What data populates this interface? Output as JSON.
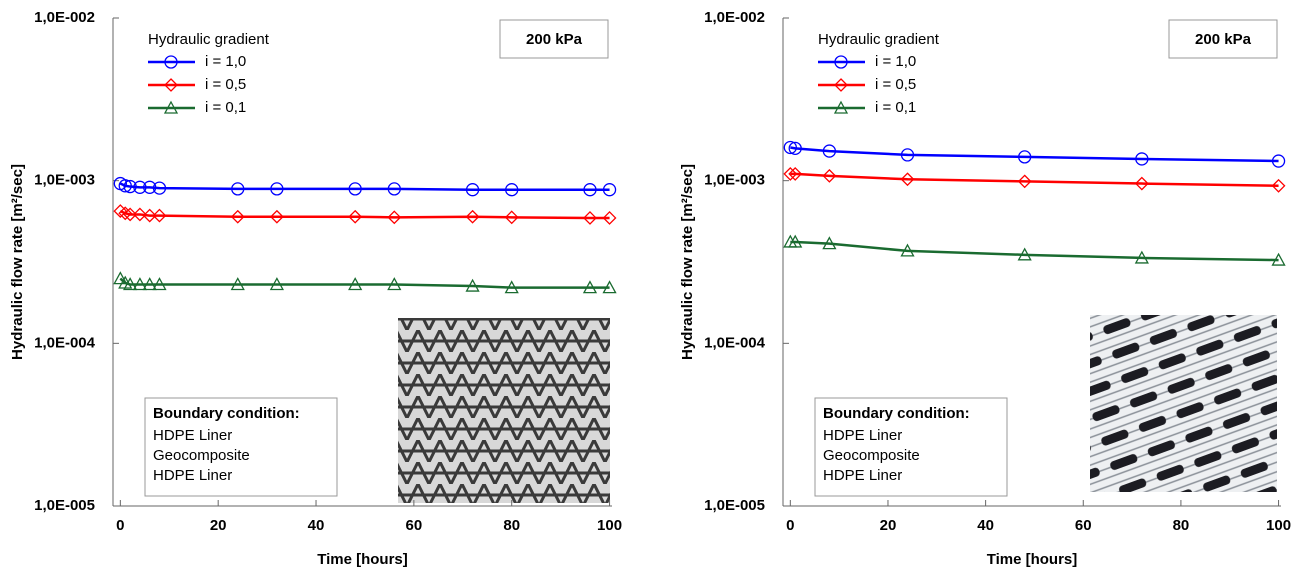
{
  "chart_data": [
    {
      "type": "line",
      "log_y": true,
      "annotation": "200 kPa",
      "legend_title": "Hydraulic gradient",
      "xlabel": "Time [hours]",
      "ylabel": "Hydraulic flow rate [m²/sec]",
      "xlim": [
        -1.5,
        100.5
      ],
      "xticks": [
        0,
        20,
        40,
        60,
        80,
        100
      ],
      "ylim": [
        1e-05,
        0.01
      ],
      "yticks": [
        {
          "value": 1e-05,
          "label": "1,0E-005"
        },
        {
          "value": 0.0001,
          "label": "1,0E-004"
        },
        {
          "value": 0.001,
          "label": "1,0E-003"
        },
        {
          "value": 0.01,
          "label": "1,0E-002"
        }
      ],
      "x": [
        0,
        1,
        2,
        4,
        6,
        8,
        24,
        32,
        48,
        56,
        72,
        80,
        96,
        100
      ],
      "series": [
        {
          "name": "i = 1,0",
          "color": "#0000ff",
          "marker": "circle",
          "values": [
            0.00096,
            0.00093,
            0.00092,
            0.00091,
            0.00091,
            0.0009,
            0.00089,
            0.00089,
            0.00089,
            0.00089,
            0.00088,
            0.00088,
            0.00088,
            0.00088
          ]
        },
        {
          "name": "i = 0,5",
          "color": "#ff0000",
          "marker": "diamond",
          "values": [
            0.00065,
            0.00063,
            0.00062,
            0.00062,
            0.00061,
            0.00061,
            0.0006,
            0.0006,
            0.0006,
            0.000595,
            0.0006,
            0.000595,
            0.00059,
            0.00059
          ]
        },
        {
          "name": "i = 0,1",
          "color": "#1a6b30",
          "marker": "triangle",
          "values": [
            0.00025,
            0.000235,
            0.00023,
            0.00023,
            0.00023,
            0.00023,
            0.00023,
            0.00023,
            0.00023,
            0.00023,
            0.000225,
            0.00022,
            0.00022,
            0.00022
          ]
        }
      ],
      "note": {
        "title": "Boundary condition:",
        "lines": [
          "HDPE Liner",
          "Geocomposite",
          "HDPE Liner"
        ]
      }
    },
    {
      "type": "line",
      "log_y": true,
      "annotation": "200 kPa",
      "legend_title": "Hydraulic gradient",
      "xlabel": "Time [hours]",
      "ylabel": "Hydraulic flow rate [m²/sec]",
      "xlim": [
        -1.5,
        100.5
      ],
      "xticks": [
        0,
        20,
        40,
        60,
        80,
        100
      ],
      "ylim": [
        1e-05,
        0.01
      ],
      "yticks": [
        {
          "value": 1e-05,
          "label": "1,0E-005"
        },
        {
          "value": 0.0001,
          "label": "1,0E-004"
        },
        {
          "value": 0.001,
          "label": "1,0E-003"
        },
        {
          "value": 0.01,
          "label": "1,0E-002"
        }
      ],
      "x": [
        0,
        1,
        8,
        24,
        48,
        72,
        100
      ],
      "series": [
        {
          "name": "i = 1,0",
          "color": "#0000ff",
          "marker": "circle",
          "values": [
            0.0016,
            0.00158,
            0.00152,
            0.00144,
            0.0014,
            0.00136,
            0.00132
          ]
        },
        {
          "name": "i = 0,5",
          "color": "#ff0000",
          "marker": "diamond",
          "values": [
            0.0011,
            0.0011,
            0.00107,
            0.00102,
            0.00099,
            0.00096,
            0.00093
          ]
        },
        {
          "name": "i = 0,1",
          "color": "#1a6b30",
          "marker": "triangle",
          "values": [
            0.00042,
            0.00042,
            0.00041,
            0.00037,
            0.00035,
            0.000335,
            0.000325
          ]
        }
      ],
      "note": {
        "title": "Boundary condition:",
        "lines": [
          "HDPE Liner",
          "Geocomposite",
          "HDPE Liner"
        ]
      }
    }
  ]
}
